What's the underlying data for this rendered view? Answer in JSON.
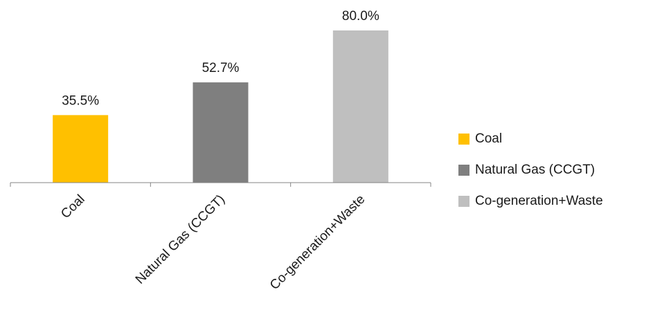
{
  "chart_data": {
    "type": "bar",
    "categories": [
      "Coal",
      "Natural Gas (CCGT)",
      "Co-generation+Waste"
    ],
    "values": [
      35.5,
      52.7,
      80.0
    ],
    "data_labels": [
      "35.5%",
      "52.7%",
      "80.0%"
    ],
    "unit": "%",
    "colors": [
      "#ffc000",
      "#7f7f7f",
      "#bfbfbf"
    ],
    "ylim": [
      0,
      80
    ],
    "grid": false,
    "legend": {
      "position": "right",
      "entries": [
        "Coal",
        "Natural Gas (CCGT)",
        "Co-generation+Waste"
      ]
    }
  }
}
